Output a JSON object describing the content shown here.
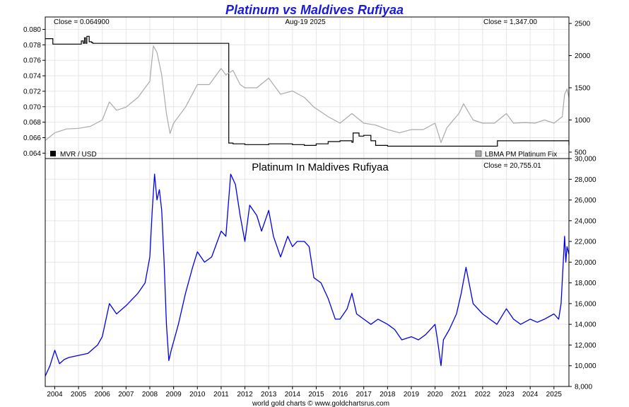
{
  "title": "Platinum vs Maldives Rufiyaa",
  "footer": "world gold charts © www.goldchartsrus.com",
  "colors": {
    "title": "#1a1adc",
    "mvr_series": "#000000",
    "platinum_series": "#aaaaaa",
    "ratio_series": "#0000ee",
    "grid": "#e6e6e6",
    "frame": "#000000"
  },
  "chart_data": [
    {
      "type": "line",
      "panel": "top",
      "header_left": "Close = 0.064900",
      "header_center": "Aug-19  2025",
      "header_right": "Close = 1,347.00",
      "legend": [
        "MVR / USD",
        "LBMA PM Platinum Fix"
      ],
      "legend_placement": "bottom",
      "grid": true,
      "y_left": {
        "ticks": [
          "0.080",
          "0.078",
          "0.076",
          "0.074",
          "0.072",
          "0.070",
          "0.068",
          "0.066",
          "0.064"
        ],
        "range": [
          0.0633,
          0.0816
        ]
      },
      "y_right": {
        "ticks": [
          "2500",
          "2000",
          "1500",
          "1000",
          "500"
        ],
        "range": [
          400,
          2600
        ]
      },
      "series": [
        {
          "name": "MVR / USD",
          "axis": "left",
          "x": [
            2003.6,
            2003.9,
            2003.92,
            2005.1,
            2005.12,
            2005.2,
            2005.25,
            2005.3,
            2005.35,
            2005.45,
            2005.55,
            2005.6,
            2005.8,
            2006.0,
            2011.3,
            2011.32,
            2011.5,
            2012.0,
            2013.0,
            2014.0,
            2014.5,
            2015.0,
            2015.5,
            2016.0,
            2016.5,
            2016.55,
            2016.8,
            2017.0,
            2017.3,
            2017.5,
            2018.0,
            2019.0,
            2020.0,
            2021.0,
            2022.0,
            2022.6,
            2022.62,
            2023.0,
            2024.0,
            2025.0,
            2025.63
          ],
          "y": [
            0.0788,
            0.0788,
            0.0781,
            0.0781,
            0.0785,
            0.0782,
            0.0789,
            0.0782,
            0.0791,
            0.0784,
            0.0783,
            0.0782,
            0.0782,
            0.0782,
            0.0782,
            0.0653,
            0.0652,
            0.0651,
            0.0652,
            0.0651,
            0.065,
            0.0652,
            0.0655,
            0.0656,
            0.0654,
            0.0666,
            0.0662,
            0.0663,
            0.0656,
            0.065,
            0.0649,
            0.0649,
            0.0649,
            0.0649,
            0.0649,
            0.0649,
            0.0656,
            0.0656,
            0.0656,
            0.0656,
            0.065
          ]
        },
        {
          "name": "LBMA PM Platinum Fix",
          "axis": "right",
          "x": [
            2003.6,
            2004.0,
            2004.5,
            2005.0,
            2005.5,
            2006.0,
            2006.3,
            2006.6,
            2007.0,
            2007.5,
            2008.0,
            2008.15,
            2008.3,
            2008.5,
            2008.7,
            2008.85,
            2009.0,
            2009.5,
            2010.0,
            2010.5,
            2011.0,
            2011.2,
            2011.5,
            2011.8,
            2012.0,
            2012.5,
            2013.0,
            2013.5,
            2014.0,
            2014.5,
            2014.9,
            2015.5,
            2016.0,
            2016.5,
            2017.0,
            2017.5,
            2018.0,
            2018.5,
            2019.0,
            2019.5,
            2020.0,
            2020.25,
            2020.5,
            2021.0,
            2021.2,
            2021.6,
            2022.0,
            2022.5,
            2023.0,
            2023.3,
            2023.8,
            2024.2,
            2024.6,
            2025.0,
            2025.35,
            2025.45,
            2025.55,
            2025.63
          ],
          "y": [
            680,
            800,
            860,
            870,
            900,
            1000,
            1280,
            1150,
            1200,
            1350,
            1600,
            2150,
            2050,
            1700,
            1100,
            790,
            950,
            1200,
            1550,
            1550,
            1800,
            1700,
            1770,
            1550,
            1500,
            1500,
            1650,
            1400,
            1450,
            1350,
            1200,
            1050,
            950,
            1100,
            950,
            920,
            850,
            800,
            850,
            850,
            950,
            650,
            880,
            1100,
            1250,
            1000,
            950,
            950,
            1100,
            950,
            960,
            950,
            1000,
            950,
            1050,
            1400,
            1480,
            1347
          ]
        }
      ]
    },
    {
      "type": "line",
      "panel": "bottom",
      "title": "Platinum In Maldives Rufiyaa",
      "header_right": "Close = 20,755.01",
      "grid": true,
      "x_ticks": [
        "2004",
        "2005",
        "2006",
        "2007",
        "2008",
        "2009",
        "2010",
        "2011",
        "2012",
        "2013",
        "2014",
        "2015",
        "2016",
        "2017",
        "2018",
        "2019",
        "2020",
        "2021",
        "2022",
        "2023",
        "2024",
        "2025"
      ],
      "x_range": [
        2003.6,
        2025.63
      ],
      "y_right": {
        "ticks": [
          "30,000",
          "28,000",
          "26,000",
          "24,000",
          "22,000",
          "20,000",
          "18,000",
          "16,000",
          "14,000",
          "12,000",
          "10,000",
          "8,000"
        ],
        "range": [
          8000,
          30000
        ]
      },
      "series": [
        {
          "name": "Platinum In Maldives Rufiyaa",
          "x": [
            2003.6,
            2003.8,
            2004.0,
            2004.2,
            2004.4,
            2004.6,
            2005.0,
            2005.4,
            2005.8,
            2006.0,
            2006.3,
            2006.6,
            2007.0,
            2007.5,
            2007.8,
            2008.0,
            2008.1,
            2008.2,
            2008.3,
            2008.4,
            2008.5,
            2008.6,
            2008.7,
            2008.8,
            2008.9,
            2009.2,
            2009.5,
            2009.8,
            2010.0,
            2010.3,
            2010.6,
            2011.0,
            2011.2,
            2011.4,
            2011.6,
            2011.8,
            2012.0,
            2012.2,
            2012.5,
            2012.7,
            2013.0,
            2013.2,
            2013.5,
            2013.8,
            2014.0,
            2014.2,
            2014.5,
            2014.7,
            2014.9,
            2015.2,
            2015.5,
            2015.8,
            2016.0,
            2016.3,
            2016.5,
            2016.7,
            2017.0,
            2017.3,
            2017.6,
            2018.0,
            2018.3,
            2018.6,
            2019.0,
            2019.3,
            2019.6,
            2020.0,
            2020.1,
            2020.25,
            2020.35,
            2020.6,
            2020.9,
            2021.1,
            2021.3,
            2021.6,
            2022.0,
            2022.3,
            2022.6,
            2023.0,
            2023.3,
            2023.6,
            2024.0,
            2024.3,
            2024.6,
            2025.0,
            2025.2,
            2025.3,
            2025.45,
            2025.5,
            2025.55,
            2025.63
          ],
          "y": [
            9000,
            10000,
            11500,
            10200,
            10600,
            10800,
            11000,
            11200,
            12000,
            12800,
            16000,
            15000,
            15800,
            17000,
            18000,
            20500,
            25000,
            28500,
            26000,
            27000,
            25000,
            20000,
            14000,
            10500,
            11500,
            14000,
            17000,
            19500,
            21000,
            20000,
            20500,
            23000,
            22500,
            28500,
            27500,
            24500,
            22000,
            25500,
            24500,
            23000,
            25000,
            22500,
            20500,
            22500,
            21500,
            22000,
            22000,
            21500,
            18500,
            18000,
            16500,
            14500,
            14500,
            15500,
            17000,
            15000,
            14500,
            14000,
            14500,
            14000,
            13500,
            12500,
            12800,
            12500,
            13000,
            14000,
            12500,
            10000,
            12500,
            13500,
            15000,
            17000,
            19500,
            16000,
            15000,
            14500,
            14000,
            15500,
            14500,
            14000,
            14500,
            14200,
            14500,
            15000,
            14500,
            16000,
            22500,
            20000,
            21500,
            20755
          ]
        }
      ]
    }
  ]
}
